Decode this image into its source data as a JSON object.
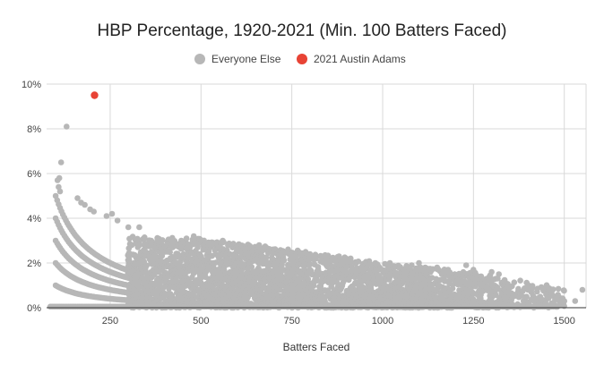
{
  "chart_data": {
    "type": "scatter",
    "title": "HBP Percentage, 1920-2021 (Min. 100 Batters Faced)",
    "xlabel": "Batters Faced",
    "ylabel": "",
    "xlim": [
      75,
      1560
    ],
    "ylim": [
      0,
      10
    ],
    "x_ticks": [
      250,
      500,
      750,
      1000,
      1250,
      1500
    ],
    "x_tick_labels": [
      "250",
      "500",
      "750",
      "1000",
      "1250",
      "1500"
    ],
    "y_ticks": [
      0,
      2,
      4,
      6,
      8,
      10
    ],
    "y_tick_labels": [
      "0%",
      "2%",
      "4%",
      "6%",
      "8%",
      "10%"
    ],
    "grid": true,
    "legend_position": "top-center",
    "series": [
      {
        "name": "Everyone Else",
        "color": "#b7b7b7",
        "hbp_counts_shown_as_curves": [
          1,
          2,
          3,
          4,
          5
        ],
        "curve_x_range": [
          100,
          330
        ],
        "dense_band": {
          "x_range": [
            300,
            1500
          ],
          "y_max_trend": [
            [
              300,
              3.2
            ],
            [
              500,
              3.1
            ],
            [
              750,
              2.6
            ],
            [
              1000,
              2.0
            ],
            [
              1250,
              1.6
            ],
            [
              1500,
              0.9
            ]
          ]
        },
        "points": [
          [
            130,
            8.1
          ],
          [
            115,
            6.5
          ],
          [
            110,
            5.8
          ],
          [
            105,
            5.7
          ],
          [
            108,
            5.4
          ],
          [
            112,
            5.2
          ],
          [
            160,
            4.9
          ],
          [
            170,
            4.7
          ],
          [
            180,
            4.6
          ],
          [
            195,
            4.4
          ],
          [
            205,
            4.3
          ],
          [
            240,
            4.1
          ],
          [
            255,
            4.2
          ],
          [
            270,
            3.9
          ],
          [
            300,
            3.6
          ],
          [
            330,
            3.6
          ],
          [
            380,
            3.0
          ],
          [
            420,
            3.0
          ],
          [
            460,
            3.1
          ],
          [
            480,
            3.2
          ],
          [
            500,
            3.0
          ],
          [
            520,
            2.9
          ],
          [
            540,
            2.9
          ],
          [
            560,
            3.0
          ],
          [
            600,
            2.6
          ],
          [
            660,
            2.8
          ],
          [
            720,
            2.4
          ],
          [
            760,
            2.3
          ],
          [
            800,
            2.4
          ],
          [
            830,
            2.3
          ],
          [
            880,
            2.3
          ],
          [
            900,
            2.2
          ],
          [
            980,
            2.0
          ],
          [
            1020,
            2.0
          ],
          [
            1080,
            1.9
          ],
          [
            1100,
            2.0
          ],
          [
            1150,
            1.8
          ],
          [
            1180,
            1.7
          ],
          [
            1230,
            1.9
          ],
          [
            1250,
            1.7
          ],
          [
            1300,
            1.6
          ],
          [
            1320,
            1.5
          ],
          [
            1350,
            0.9
          ],
          [
            1400,
            0.8
          ],
          [
            1450,
            0.6
          ],
          [
            1480,
            0.4
          ],
          [
            1500,
            0.3
          ],
          [
            1530,
            0.3
          ],
          [
            1550,
            0.8
          ]
        ]
      },
      {
        "name": "2021 Austin Adams",
        "color": "#e84335",
        "points": [
          [
            207,
            9.5
          ]
        ]
      }
    ]
  }
}
